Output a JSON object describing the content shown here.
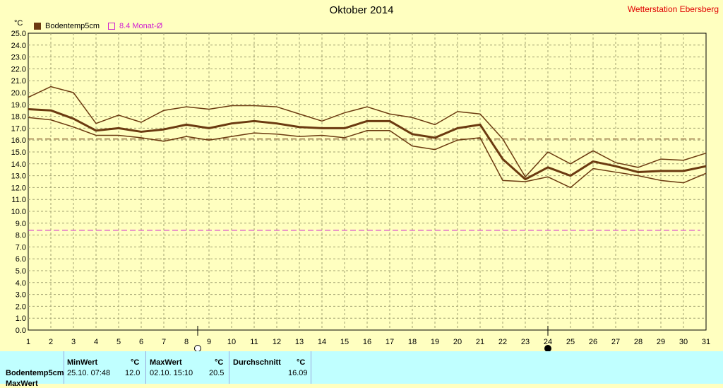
{
  "header": {
    "title": "Oktober 2014",
    "station": "Wetterstation Ebersberg",
    "unit": "°C"
  },
  "legend": [
    {
      "label": "Bodentemp5cm",
      "color": "#6b3a10",
      "style": "filled"
    },
    {
      "label": "8.4 Monat-Ø",
      "color": "#d020d0",
      "style": "outline"
    }
  ],
  "colors": {
    "background": "#ffffc0",
    "series": "#6b3a10",
    "average": "#d020d0",
    "grid": "#a0a070",
    "table_bg": "#c0ffff"
  },
  "icons": {
    "full_moon": "full-moon-icon",
    "new_moon": "new-moon-icon"
  },
  "chart_data": {
    "type": "line",
    "title": "Oktober 2014",
    "ylabel": "°C",
    "xlim": [
      1,
      31
    ],
    "ylim": [
      0,
      25
    ],
    "grid": true,
    "legend_position": "top-left",
    "x": [
      1,
      2,
      3,
      4,
      5,
      6,
      7,
      8,
      9,
      10,
      11,
      12,
      13,
      14,
      15,
      16,
      17,
      18,
      19,
      20,
      21,
      22,
      23,
      24,
      25,
      26,
      27,
      28,
      29,
      30,
      31
    ],
    "x_ticks": [
      1,
      2,
      3,
      4,
      5,
      6,
      7,
      8,
      9,
      10,
      11,
      12,
      13,
      14,
      15,
      16,
      17,
      18,
      19,
      20,
      21,
      22,
      23,
      24,
      25,
      26,
      27,
      28,
      29,
      30,
      31
    ],
    "y_ticks": [
      0,
      1,
      2,
      3,
      4,
      5,
      6,
      7,
      8,
      9,
      10,
      11,
      12,
      13,
      14,
      15,
      16,
      17,
      18,
      19,
      20,
      21,
      22,
      23,
      24,
      25
    ],
    "y_tick_labels": [
      "0.0",
      "1.0",
      "2.0",
      "3.0",
      "4.0",
      "5.0",
      "6.0",
      "7.0",
      "8.0",
      "9.0",
      "10.0",
      "11.0",
      "12.0",
      "13.0",
      "14.0",
      "15.0",
      "16.0",
      "17.0",
      "18.0",
      "19.0",
      "20.0",
      "21.0",
      "22.0",
      "23.0",
      "24.0",
      "25.0"
    ],
    "series": [
      {
        "name": "Bodentemp5cm",
        "role": "max",
        "values": [
          19.6,
          20.5,
          20.0,
          17.4,
          18.1,
          17.5,
          18.5,
          18.8,
          18.6,
          18.9,
          18.9,
          18.8,
          18.2,
          17.6,
          18.3,
          18.8,
          18.2,
          17.9,
          17.3,
          18.4,
          18.2,
          16.1,
          12.9,
          15.0,
          14.0,
          15.1,
          14.1,
          13.7,
          14.4,
          14.3,
          14.9
        ]
      },
      {
        "name": "Bodentemp5cm",
        "role": "mean",
        "values": [
          18.6,
          18.5,
          17.8,
          16.8,
          17.0,
          16.7,
          16.9,
          17.3,
          17.0,
          17.4,
          17.6,
          17.4,
          17.1,
          17.0,
          17.0,
          17.6,
          17.6,
          16.5,
          16.2,
          17.0,
          17.3,
          14.4,
          12.7,
          13.7,
          13.0,
          14.2,
          13.8,
          13.3,
          13.4,
          13.4,
          13.8
        ]
      },
      {
        "name": "Bodentemp5cm",
        "role": "min",
        "values": [
          17.9,
          17.7,
          17.1,
          16.4,
          16.4,
          16.2,
          15.9,
          16.3,
          16.0,
          16.3,
          16.6,
          16.5,
          16.3,
          16.4,
          16.2,
          16.8,
          16.8,
          15.5,
          15.2,
          16.0,
          16.2,
          12.6,
          12.5,
          12.9,
          12.0,
          13.6,
          13.3,
          13.0,
          12.6,
          12.4,
          13.2
        ]
      }
    ],
    "reference_lines": [
      {
        "label": "16.09",
        "value": 16.09,
        "color": "#6b3a10"
      },
      {
        "label": "8.4 Monat-Ø",
        "value": 8.4,
        "color": "#d020d0"
      }
    ],
    "moon_markers": [
      {
        "day": 8.5,
        "phase": "full"
      },
      {
        "day": 24,
        "phase": "new"
      }
    ]
  },
  "stats_table": {
    "headers": {
      "min": "MinWert",
      "max": "MaxWert",
      "avg": "Durchschnitt",
      "unit": "°C"
    },
    "row": {
      "label": "Bodentemp5cm",
      "min_time": "25.10. 07:48",
      "min_value": "12.0",
      "max_time": "02.10. 15:10",
      "max_value": "20.5",
      "avg_value": "16.09"
    },
    "next_row_label": "MaxWert"
  }
}
